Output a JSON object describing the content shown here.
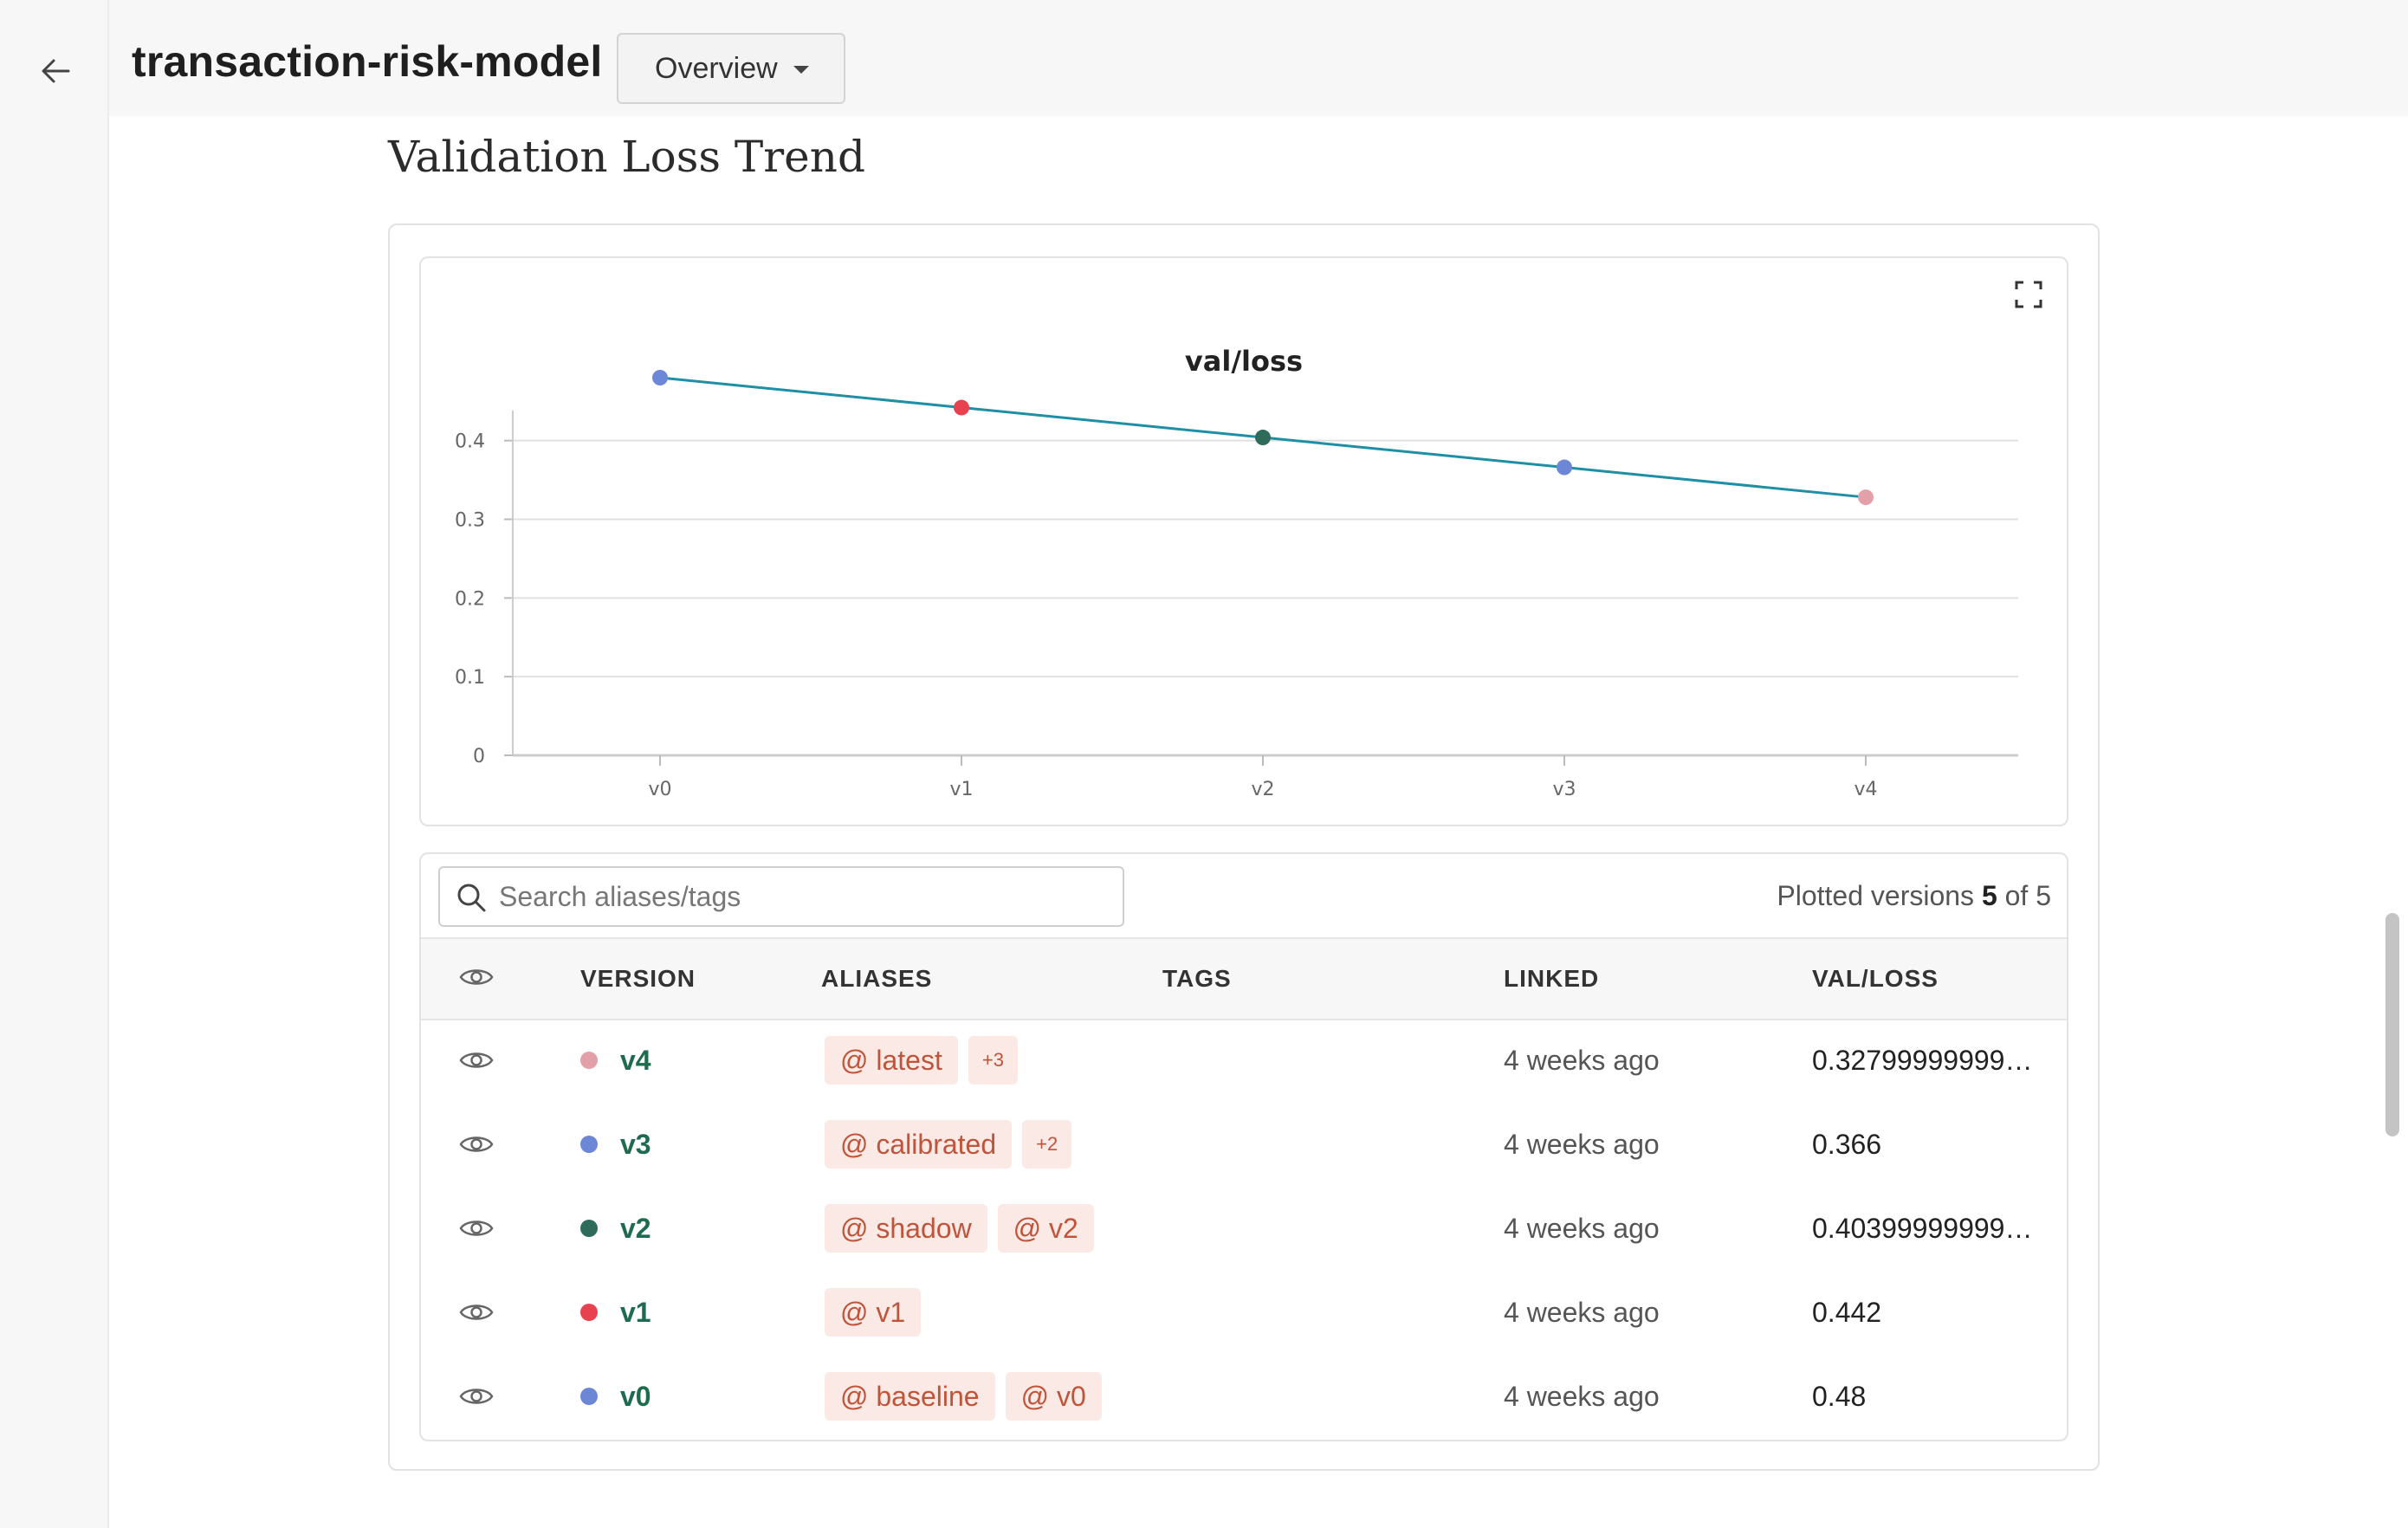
{
  "header": {
    "title": "transaction-risk-model",
    "view_dropdown": "Overview"
  },
  "section": {
    "title": "Validation Loss Trend"
  },
  "chart_data": {
    "type": "line",
    "title": "val/loss",
    "categories": [
      "v0",
      "v1",
      "v2",
      "v3",
      "v4"
    ],
    "values": [
      0.48,
      0.442,
      0.404,
      0.366,
      0.328
    ],
    "point_colors": [
      "#6b87d6",
      "#e8414f",
      "#2f6b5a",
      "#6b87d6",
      "#e3a0a8"
    ],
    "line_color": "#1f8fa6",
    "ylim": [
      0,
      0.48
    ],
    "yticks": [
      0,
      0.1,
      0.2,
      0.3,
      0.4
    ],
    "grid": true
  },
  "table": {
    "search_placeholder": "Search aliases/tags",
    "plotted_prefix": "Plotted versions ",
    "plotted_count": "5",
    "plotted_of": " of 5",
    "columns": [
      "VERSION",
      "ALIASES",
      "TAGS",
      "LINKED",
      "VAL/LOSS"
    ],
    "rows": [
      {
        "version": "v4",
        "color": "#e3a0a8",
        "aliases": [
          "@ latest"
        ],
        "more": "+3",
        "linked": "4 weeks ago",
        "val_loss": "0.32799999999999996"
      },
      {
        "version": "v3",
        "color": "#6b87d6",
        "aliases": [
          "@ calibrated"
        ],
        "more": "+2",
        "linked": "4 weeks ago",
        "val_loss": "0.366"
      },
      {
        "version": "v2",
        "color": "#2f6b5a",
        "aliases": [
          "@ shadow",
          "@ v2"
        ],
        "more": "",
        "linked": "4 weeks ago",
        "val_loss": "0.40399999999999997"
      },
      {
        "version": "v1",
        "color": "#e8414f",
        "aliases": [
          "@ v1"
        ],
        "more": "",
        "linked": "4 weeks ago",
        "val_loss": "0.442"
      },
      {
        "version": "v0",
        "color": "#6b87d6",
        "aliases": [
          "@ baseline",
          "@ v0"
        ],
        "more": "",
        "linked": "4 weeks ago",
        "val_loss": "0.48"
      }
    ]
  }
}
